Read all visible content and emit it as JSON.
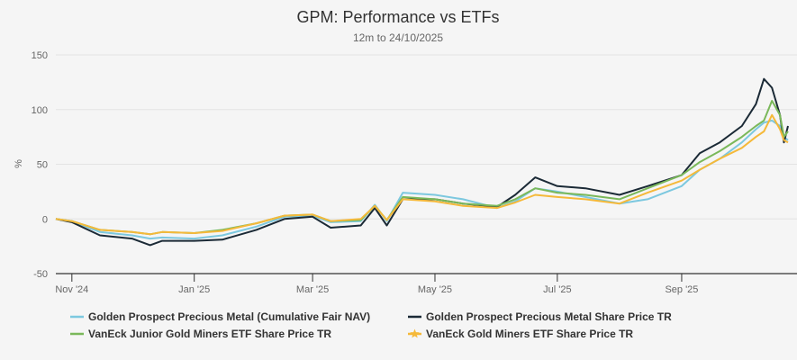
{
  "chart_data": {
    "type": "line",
    "title": "GPM: Performance vs ETFs",
    "subtitle": "12m to 24/10/2025",
    "ylabel": "%",
    "xlabel": "",
    "ylim": [
      -50,
      150
    ],
    "yticks": [
      "150",
      "100",
      "50",
      "0",
      "-50"
    ],
    "ytick_values": [
      150,
      100,
      50,
      0,
      -50
    ],
    "xticks": [
      {
        "label": "Nov '24",
        "date": "2024-11-01"
      },
      {
        "label": "Jan '25",
        "date": "2025-01-01"
      },
      {
        "label": "Mar '25",
        "date": "2025-03-01"
      },
      {
        "label": "May '25",
        "date": "2025-05-01"
      },
      {
        "label": "Jul '25",
        "date": "2025-07-01"
      },
      {
        "label": "Sep '25",
        "date": "2025-09-01"
      }
    ],
    "xlim": [
      "2024-10-24",
      "2025-10-24"
    ],
    "grid": true,
    "legend_position": "bottom",
    "x": [
      "2024-10-24",
      "2024-11-01",
      "2024-11-15",
      "2024-12-01",
      "2024-12-10",
      "2024-12-16",
      "2025-01-01",
      "2025-01-15",
      "2025-02-01",
      "2025-02-15",
      "2025-03-01",
      "2025-03-10",
      "2025-03-25",
      "2025-04-01",
      "2025-04-07",
      "2025-04-15",
      "2025-05-01",
      "2025-05-15",
      "2025-06-01",
      "2025-06-10",
      "2025-06-20",
      "2025-07-01",
      "2025-07-15",
      "2025-08-01",
      "2025-08-15",
      "2025-09-01",
      "2025-09-10",
      "2025-09-20",
      "2025-10-01",
      "2025-10-08",
      "2025-10-12",
      "2025-10-16",
      "2025-10-20",
      "2025-10-22",
      "2025-10-24"
    ],
    "series": [
      {
        "name": "Golden Prospect Precious Metal (Cumulative Fair NAV)",
        "color": "#7cc8df",
        "marker": "line",
        "values": [
          0,
          -2,
          -12,
          -15,
          -18,
          -17,
          -18,
          -15,
          -7,
          2,
          3,
          -3,
          -2,
          13,
          -2,
          24,
          22,
          18,
          10,
          16,
          28,
          25,
          20,
          14,
          18,
          30,
          45,
          55,
          70,
          82,
          88,
          90,
          85,
          75,
          72
        ]
      },
      {
        "name": "Golden Prospect Precious Metal Share Price TR",
        "color": "#1b2a36",
        "marker": "line",
        "values": [
          0,
          -3,
          -15,
          -18,
          -24,
          -20,
          -20,
          -19,
          -10,
          0,
          2,
          -8,
          -6,
          10,
          -6,
          18,
          18,
          14,
          11,
          22,
          38,
          30,
          28,
          22,
          30,
          40,
          60,
          70,
          85,
          105,
          128,
          120,
          95,
          70,
          85
        ]
      },
      {
        "name": "VanEck Junior Gold Miners ETF Share Price TR",
        "color": "#7ab85a",
        "marker": "line",
        "values": [
          0,
          -2,
          -10,
          -12,
          -14,
          -12,
          -13,
          -10,
          -4,
          3,
          4,
          -2,
          -1,
          12,
          -1,
          20,
          18,
          14,
          12,
          18,
          28,
          24,
          22,
          18,
          28,
          40,
          52,
          62,
          75,
          85,
          90,
          108,
          95,
          75,
          80
        ]
      },
      {
        "name": "VanEck Gold Miners ETF Share Price TR",
        "color": "#f5b93a",
        "marker": "star",
        "values": [
          0,
          -2,
          -10,
          -12,
          -14,
          -12,
          -13,
          -11,
          -4,
          3,
          4,
          -2,
          0,
          12,
          -1,
          18,
          16,
          12,
          10,
          15,
          22,
          20,
          18,
          14,
          24,
          35,
          45,
          55,
          65,
          75,
          80,
          95,
          82,
          72,
          70
        ]
      }
    ]
  }
}
